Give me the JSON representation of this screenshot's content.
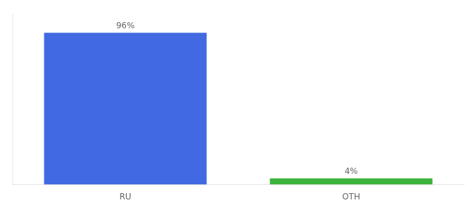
{
  "chart_data": {
    "type": "bar",
    "categories": [
      "RU",
      "OTH"
    ],
    "values": [
      96,
      4
    ],
    "value_labels": [
      "96%",
      "4%"
    ],
    "colors": [
      "#4169e1",
      "#3cb33c"
    ],
    "ylim": [
      0,
      108
    ],
    "data_labels": true,
    "tick_labels": "x",
    "grid": false
  }
}
